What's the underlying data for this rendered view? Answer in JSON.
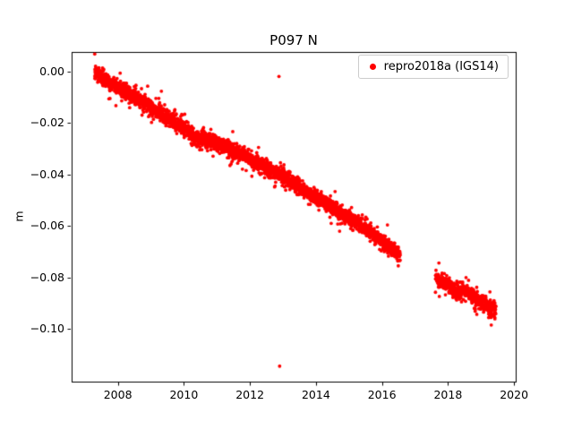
{
  "chart_data": {
    "type": "scatter",
    "title": "P097 N",
    "xlabel": "",
    "ylabel": "m",
    "xlim": [
      2006.6,
      2020.05
    ],
    "ylim": [
      -0.1205,
      0.0075
    ],
    "grid": false,
    "x_ticks": [
      2008,
      2010,
      2012,
      2014,
      2016,
      2018,
      2020
    ],
    "x_tick_labels": [
      "2008",
      "2010",
      "2012",
      "2014",
      "2016",
      "2018",
      "2020"
    ],
    "y_ticks": [
      0.0,
      -0.02,
      -0.04,
      -0.06,
      -0.08,
      -0.1
    ],
    "y_tick_labels": [
      "0.00",
      "−0.02",
      "−0.04",
      "−0.06",
      "−0.08",
      "−0.10"
    ],
    "legend": {
      "position": "upper right",
      "entries": [
        "repro2018a (IGS14)"
      ]
    },
    "series": [
      {
        "name": "repro2018a (IGS14)",
        "color": "#ff0000",
        "marker": "dot",
        "marker_diameter_px": 3.8,
        "points_per_year": 365,
        "noise_std_m": 0.0014,
        "seed": 7,
        "segments": [
          {
            "anchors": [
              [
                2007.3,
                -0.0005
              ],
              [
                2007.7,
                -0.004
              ],
              [
                2008.0,
                -0.006
              ],
              [
                2008.5,
                -0.01
              ],
              [
                2009.0,
                -0.014
              ],
              [
                2009.5,
                -0.018
              ],
              [
                2010.0,
                -0.022
              ],
              [
                2010.35,
                -0.026
              ],
              [
                2010.8,
                -0.027
              ],
              [
                2011.2,
                -0.029
              ],
              [
                2011.7,
                -0.032
              ],
              [
                2012.2,
                -0.0355
              ],
              [
                2012.7,
                -0.039
              ],
              [
                2013.0,
                -0.041
              ],
              [
                2013.5,
                -0.045
              ],
              [
                2014.0,
                -0.049
              ],
              [
                2014.5,
                -0.053
              ],
              [
                2015.0,
                -0.057
              ],
              [
                2015.5,
                -0.061
              ],
              [
                2016.0,
                -0.066
              ],
              [
                2016.3,
                -0.069
              ],
              [
                2016.55,
                -0.071
              ]
            ]
          },
          {
            "anchors": [
              [
                2017.62,
                -0.0795
              ],
              [
                2017.8,
                -0.082
              ],
              [
                2018.0,
                -0.0825
              ],
              [
                2018.25,
                -0.0855
              ],
              [
                2018.5,
                -0.085
              ],
              [
                2018.8,
                -0.088
              ],
              [
                2019.1,
                -0.0905
              ],
              [
                2019.45,
                -0.093
              ]
            ]
          }
        ],
        "outliers": [
          [
            2012.88,
            -0.002
          ],
          [
            2012.9,
            -0.1145
          ]
        ]
      }
    ]
  }
}
